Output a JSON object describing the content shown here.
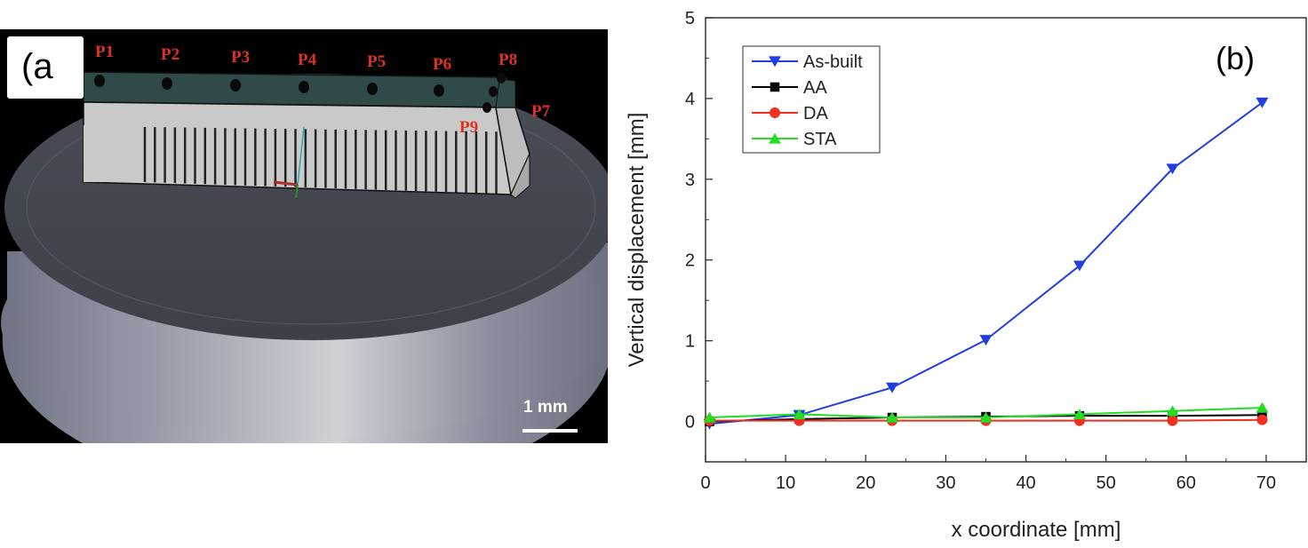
{
  "panel_a": {
    "label": "(a",
    "scale_bar_label": "1 mm",
    "points": [
      "P1",
      "P2",
      "P3",
      "P4",
      "P5",
      "P6",
      "P7",
      "P8",
      "P9"
    ]
  },
  "panel_b": {
    "label": "(b)"
  },
  "chart_data": {
    "type": "line",
    "xlabel": "x coordinate [mm]",
    "ylabel": "Vertical displacement [mm]",
    "xlim": [
      0,
      75
    ],
    "ylim": [
      -0.5,
      5
    ],
    "x_ticks": [
      0,
      10,
      20,
      30,
      40,
      50,
      60,
      70
    ],
    "y_ticks": [
      0,
      1,
      2,
      3,
      4,
      5
    ],
    "grid": false,
    "legend_position": "top-left",
    "series": [
      {
        "name": "As-built",
        "color": "#1f3fe0",
        "marker": "triangle-down",
        "x": [
          0.5,
          11.7,
          23.3,
          35.0,
          46.7,
          58.3,
          69.5
        ],
        "y": [
          -0.03,
          0.08,
          0.42,
          1.01,
          1.93,
          3.13,
          3.95
        ]
      },
      {
        "name": "AA",
        "color": "#000000",
        "marker": "square",
        "x": [
          0.5,
          11.7,
          23.3,
          35.0,
          46.7,
          58.3,
          69.5
        ],
        "y": [
          0.0,
          0.03,
          0.05,
          0.06,
          0.07,
          0.07,
          0.08
        ]
      },
      {
        "name": "DA",
        "color": "#f03020",
        "marker": "circle",
        "x": [
          0.5,
          11.7,
          23.3,
          35.0,
          46.7,
          58.3,
          69.5
        ],
        "y": [
          0.01,
          0.01,
          0.01,
          0.01,
          0.01,
          0.01,
          0.02
        ]
      },
      {
        "name": "STA",
        "color": "#22dd22",
        "marker": "triangle-up",
        "x": [
          0.5,
          11.7,
          23.3,
          35.0,
          46.7,
          58.3,
          69.5
        ],
        "y": [
          0.05,
          0.09,
          0.05,
          0.05,
          0.09,
          0.13,
          0.17
        ]
      }
    ]
  }
}
